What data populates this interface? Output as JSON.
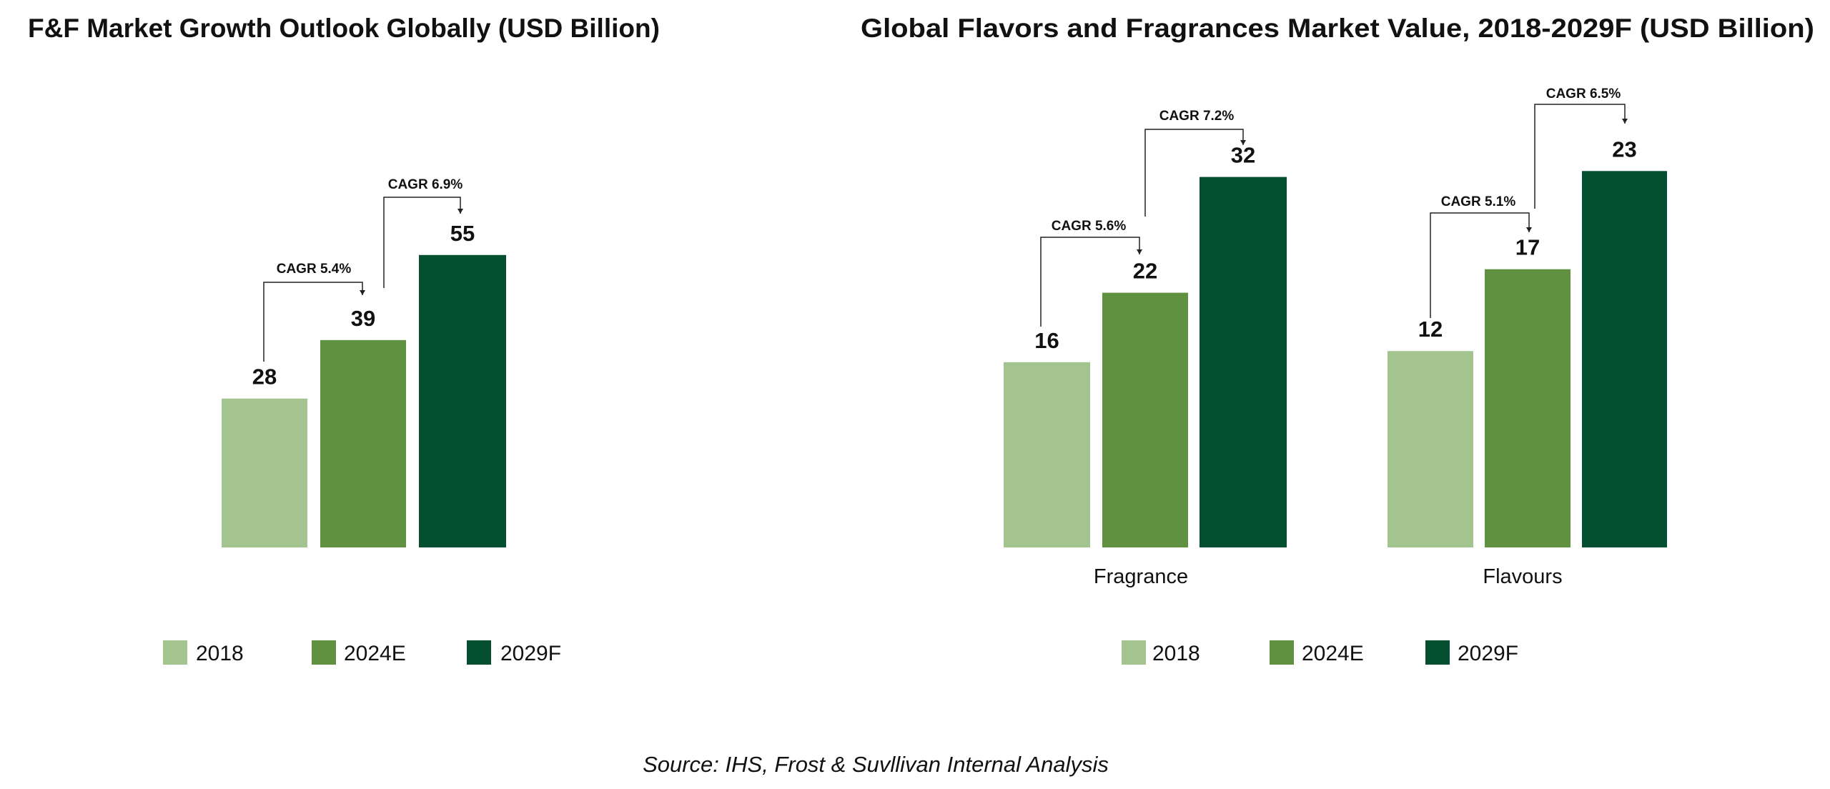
{
  "colors": {
    "2018": "#a3c48f",
    "2024E": "#5f9141",
    "2029F": "#034f2f",
    "bracket": "#222222"
  },
  "chart_data": [
    {
      "type": "bar",
      "title": "F&F Market Growth Outlook Globally (USD Billion)",
      "categories": [
        ""
      ],
      "series": [
        {
          "name": "2018",
          "values": [
            28
          ]
        },
        {
          "name": "2024E",
          "values": [
            39
          ]
        },
        {
          "name": "2029F",
          "values": [
            55
          ]
        }
      ],
      "annotations": [
        {
          "group": 0,
          "from": "2018",
          "to": "2024E",
          "text": "CAGR 5.4%"
        },
        {
          "group": 0,
          "from": "2024E",
          "to": "2029F",
          "text": "CAGR 6.9%"
        }
      ],
      "legend": [
        "2018",
        "2024E",
        "2029F"
      ],
      "legend_position": "bottom",
      "grid": false
    },
    {
      "type": "bar",
      "title": "Global Flavors and Fragrances Market Value, 2018-2029F (USD Billion)",
      "categories": [
        "Fragrance",
        "Flavours"
      ],
      "series": [
        {
          "name": "2018",
          "values": [
            16,
            12
          ]
        },
        {
          "name": "2024E",
          "values": [
            22,
            17
          ]
        },
        {
          "name": "2029F",
          "values": [
            32,
            23
          ]
        }
      ],
      "annotations": [
        {
          "group": 0,
          "from": "2018",
          "to": "2024E",
          "text": "CAGR 5.6%"
        },
        {
          "group": 0,
          "from": "2024E",
          "to": "2029F",
          "text": "CAGR 7.2%"
        },
        {
          "group": 1,
          "from": "2018",
          "to": "2024E",
          "text": "CAGR 5.1%"
        },
        {
          "group": 1,
          "from": "2024E",
          "to": "2029F",
          "text": "CAGR 6.5%"
        }
      ],
      "legend": [
        "2018",
        "2024E",
        "2029F"
      ],
      "legend_position": "bottom",
      "grid": false
    }
  ],
  "source": "Source: IHS, Frost & Suvllivan Internal Analysis"
}
